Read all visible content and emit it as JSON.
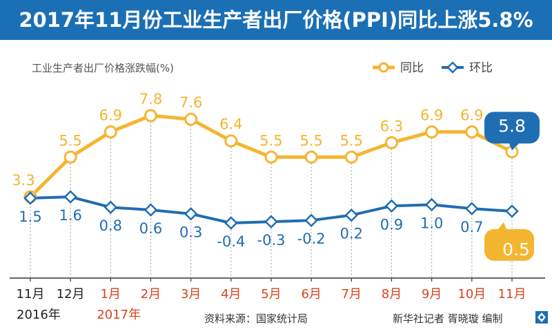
{
  "title": "2017年11月份工业生产者出厂价格(PPI)同比上涨5.8%",
  "colors": {
    "title_bg": "#1b6fb5",
    "yoy": "#f4b530",
    "mom": "#1f6db3",
    "axis_red": "#d9431e",
    "axis_dark": "#222222"
  },
  "chart_data": {
    "type": "line",
    "ylabel": "工业生产者出厂价格涨跌幅(%)",
    "legend_position": "top-right",
    "categories": [
      "11月",
      "12月",
      "1月",
      "2月",
      "3月",
      "4月",
      "5月",
      "6月",
      "7月",
      "8月",
      "9月",
      "10月",
      "11月"
    ],
    "year_labels": [
      {
        "label": "2016年",
        "from_index": 0,
        "color": "#222222"
      },
      {
        "label": "2017年",
        "from_index": 2,
        "color": "#d9431e"
      }
    ],
    "category_colors": [
      "#222222",
      "#222222",
      "#d9431e",
      "#d9431e",
      "#d9431e",
      "#d9431e",
      "#d9431e",
      "#d9431e",
      "#d9431e",
      "#d9431e",
      "#d9431e",
      "#d9431e",
      "#d9431e"
    ],
    "series": [
      {
        "name": "同比",
        "color": "#f4b530",
        "values": [
          3.3,
          5.5,
          6.9,
          7.8,
          7.6,
          6.4,
          5.5,
          5.5,
          5.5,
          6.3,
          6.9,
          6.9,
          5.8
        ],
        "labels": [
          "3.3",
          "5.5",
          "6.9",
          "7.8",
          "7.6",
          "6.4",
          "5.5",
          "5.5",
          "5.5",
          "6.3",
          "6.9",
          "6.9",
          "5.8"
        ]
      },
      {
        "name": "环比",
        "color": "#1f6db3",
        "values": [
          1.5,
          1.6,
          0.8,
          0.6,
          0.3,
          -0.4,
          -0.3,
          -0.2,
          0.2,
          0.9,
          1.0,
          0.7,
          0.5
        ],
        "labels": [
          "1.5",
          "1.6",
          "0.8",
          "0.6",
          "0.3",
          "-0.4",
          "-0.3",
          "-0.2",
          "0.2",
          "0.9",
          "1.0",
          "0.7",
          "0.5"
        ]
      }
    ],
    "grid": false
  },
  "footer": {
    "source": "资料来源：国家统计局",
    "credit": "新华社记者  胥晓璇  编制"
  }
}
